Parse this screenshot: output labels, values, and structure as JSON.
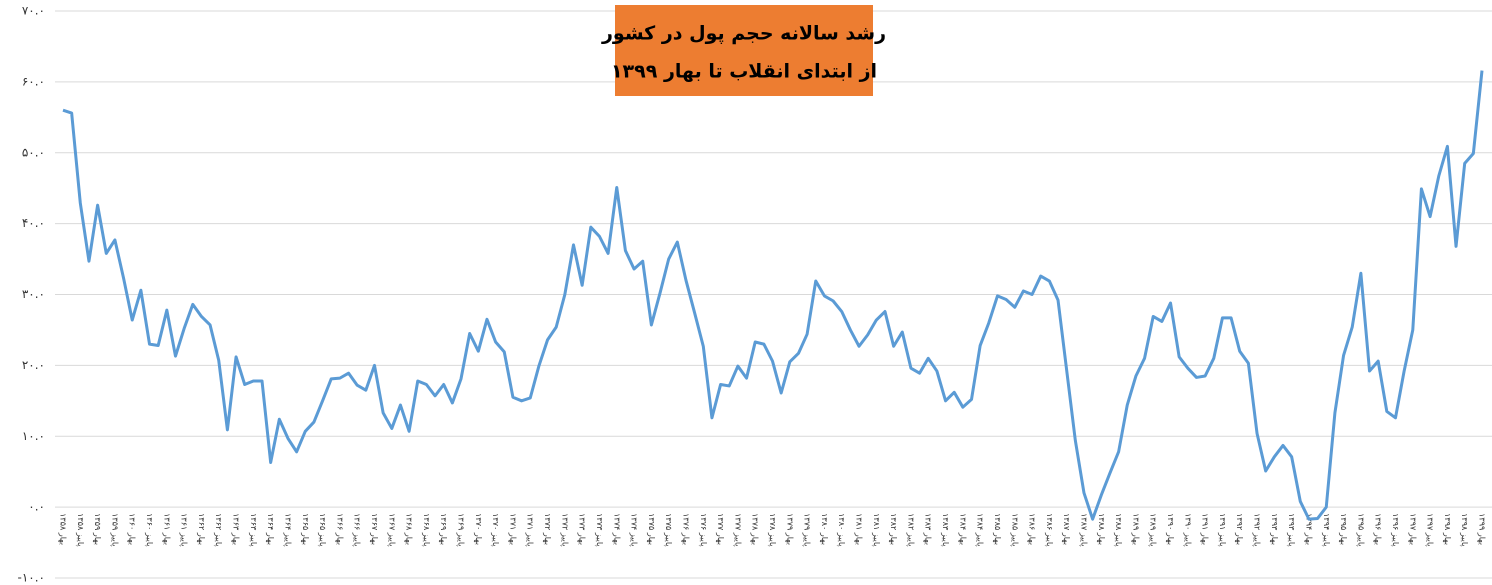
{
  "chart_data": {
    "type": "line",
    "title": "رشد سالانه حجم پول در کشور",
    "subtitle": "از ابتدای انقلاب تا بهار ۱۳۹۹",
    "title_box_color": "#ed7d31",
    "categories": [
      "بهار ۱۳۵۸",
      null,
      "پاییز ۱۳۵۸",
      null,
      "بهار ۱۳۵۹",
      null,
      "پاییز ۱۳۵۹",
      null,
      "بهار ۱۳۶۰",
      null,
      "پاییز ۱۳۶۰",
      null,
      "بهار ۱۳۶۱",
      null,
      "پاییز ۱۳۶۱",
      null,
      "بهار ۱۳۶۲",
      null,
      "پاییز ۱۳۶۲",
      null,
      "بهار ۱۳۶۳",
      null,
      "پاییز ۱۳۶۳",
      null,
      "بهار ۱۳۶۴",
      null,
      "پاییز ۱۳۶۴",
      null,
      "بهار ۱۳۶۵",
      null,
      "پاییز ۱۳۶۵",
      null,
      "بهار ۱۳۶۶",
      null,
      "پاییز ۱۳۶۶",
      null,
      "بهار ۱۳۶۷",
      null,
      "پاییز ۱۳۶۷",
      null,
      "بهار ۱۳۶۸",
      null,
      "پاییز ۱۳۶۸",
      null,
      "بهار ۱۳۶۹",
      null,
      "پاییز ۱۳۶۹",
      null,
      "بهار ۱۳۷۰",
      null,
      "پاییز ۱۳۷۰",
      null,
      "بهار ۱۳۷۱",
      null,
      "پاییز ۱۳۷۱",
      null,
      "بهار ۱۳۷۲",
      null,
      "پاییز ۱۳۷۲",
      null,
      "بهار ۱۳۷۳",
      null,
      "پاییز ۱۳۷۳",
      null,
      "بهار ۱۳۷۴",
      null,
      "پاییز ۱۳۷۴",
      null,
      "بهار ۱۳۷۵",
      null,
      "پاییز ۱۳۷۵",
      null,
      "بهار ۱۳۷۶",
      null,
      "پاییز ۱۳۷۶",
      null,
      "بهار ۱۳۷۷",
      null,
      "پاییز ۱۳۷۷",
      null,
      "بهار ۱۳۷۸",
      null,
      "پاییز ۱۳۷۸",
      null,
      "بهار ۱۳۷۹",
      null,
      "پاییز ۱۳۷۹",
      null,
      "بهار ۱۳۸۰",
      null,
      "پاییز ۱۳۸۰",
      null,
      "بهار ۱۳۸۱",
      null,
      "پاییز ۱۳۸۱",
      null,
      "بهار ۱۳۸۲",
      null,
      "پاییز ۱۳۸۲",
      null,
      "بهار ۱۳۸۳",
      null,
      "پاییز ۱۳۸۳",
      null,
      "بهار ۱۳۸۴",
      null,
      "پاییز ۱۳۸۴",
      null,
      "بهار ۱۳۸۵",
      null,
      "پاییز ۱۳۸۵",
      null,
      "بهار ۱۳۸۶",
      null,
      "پاییز ۱۳۸۶",
      null,
      "بهار ۱۳۸۷",
      null,
      "پاییز ۱۳۸۷",
      null,
      "بهار ۱۳۸۸",
      null,
      "پاییز ۱۳۸۸",
      null,
      "بهار ۱۳۸۹",
      null,
      "پاییز ۱۳۸۹",
      null,
      "بهار ۱۳۹۰",
      null,
      "پاییز ۱۳۹۰",
      null,
      "بهار ۱۳۹۱",
      null,
      "پاییز ۱۳۹۱",
      null,
      "بهار ۱۳۹۲",
      null,
      "پاییز ۱۳۹۲",
      null,
      "بهار ۱۳۹۳",
      null,
      "پاییز ۱۳۹۳",
      null,
      "بهار ۱۳۹۴",
      null,
      "پاییز ۱۳۹۴",
      null,
      "بهار ۱۳۹۵",
      null,
      "پاییز ۱۳۹۵",
      null,
      "بهار ۱۳۹۶",
      null,
      "پاییز ۱۳۹۶",
      null,
      "بهار ۱۳۹۷",
      null,
      "پاییز ۱۳۹۷",
      null,
      "بهار ۱۳۹۸",
      null,
      "پاییز ۱۳۹۸",
      null,
      "بهار ۱۳۹۹"
    ],
    "color": "#5b9bd5",
    "values": [
      56.0,
      55.6,
      42.9,
      34.7,
      42.6,
      35.8,
      37.7,
      32.3,
      26.4,
      30.6,
      23.0,
      22.8,
      27.8,
      21.3,
      25.2,
      28.6,
      26.9,
      25.7,
      20.7,
      10.9,
      21.2,
      17.3,
      17.8,
      17.8,
      6.3,
      12.4,
      9.7,
      7.8,
      10.7,
      12.0,
      15.0,
      18.1,
      18.2,
      18.9,
      17.2,
      16.5,
      20.0,
      13.3,
      11.1,
      14.4,
      10.7,
      17.8,
      17.3,
      15.7,
      17.3,
      14.7,
      18.1,
      24.5,
      22.0,
      26.5,
      23.3,
      21.9,
      15.5,
      15.0,
      15.4,
      19.9,
      23.6,
      25.4,
      30.0,
      37.0,
      31.3,
      39.5,
      38.2,
      35.8,
      45.1,
      36.2,
      33.6,
      34.7,
      25.7,
      30.2,
      35.0,
      37.4,
      32.0,
      27.4,
      22.7,
      12.6,
      17.3,
      17.1,
      19.9,
      18.2,
      23.3,
      23.0,
      20.6,
      16.1,
      20.5,
      21.7,
      24.4,
      31.9,
      29.8,
      29.1,
      27.6,
      25.0,
      22.7,
      24.3,
      26.4,
      27.6,
      22.7,
      24.7,
      19.6,
      18.9,
      21.0,
      19.2,
      15.0,
      16.2,
      14.1,
      15.2,
      22.8,
      26.0,
      29.8,
      29.3,
      28.2,
      30.5,
      30.0,
      32.6,
      31.9,
      29.2,
      19.3,
      9.4,
      2.0,
      -1.7,
      1.7,
      4.8,
      7.8,
      14.4,
      18.5,
      21.0,
      26.9,
      26.2,
      28.8,
      21.2,
      19.6,
      18.3,
      18.5,
      21.0,
      26.7,
      26.7,
      22.0,
      20.3,
      10.4,
      5.1,
      7.1,
      8.7,
      7.1,
      0.8,
      -1.7,
      -1.6,
      0.0,
      13.3,
      21.4,
      25.4,
      33.0,
      19.2,
      20.6,
      13.5,
      12.6,
      19.2,
      25.0,
      44.9,
      41.0,
      46.7,
      50.9,
      36.8,
      48.5,
      49.9,
      61.6
    ],
    "ylim": [
      -10,
      70
    ],
    "yticks": [
      {
        "value": -10,
        "label": "-۱۰.۰"
      },
      {
        "value": 0,
        "label": "۰.۰"
      },
      {
        "value": 10,
        "label": "۱۰.۰"
      },
      {
        "value": 20,
        "label": "۲۰.۰"
      },
      {
        "value": 30,
        "label": "۳۰.۰"
      },
      {
        "value": 40,
        "label": "۴۰.۰"
      },
      {
        "value": 50,
        "label": "۵۰.۰"
      },
      {
        "value": 60,
        "label": "۶۰.۰"
      },
      {
        "value": 70,
        "label": "۷۰.۰"
      }
    ],
    "grid": true
  }
}
